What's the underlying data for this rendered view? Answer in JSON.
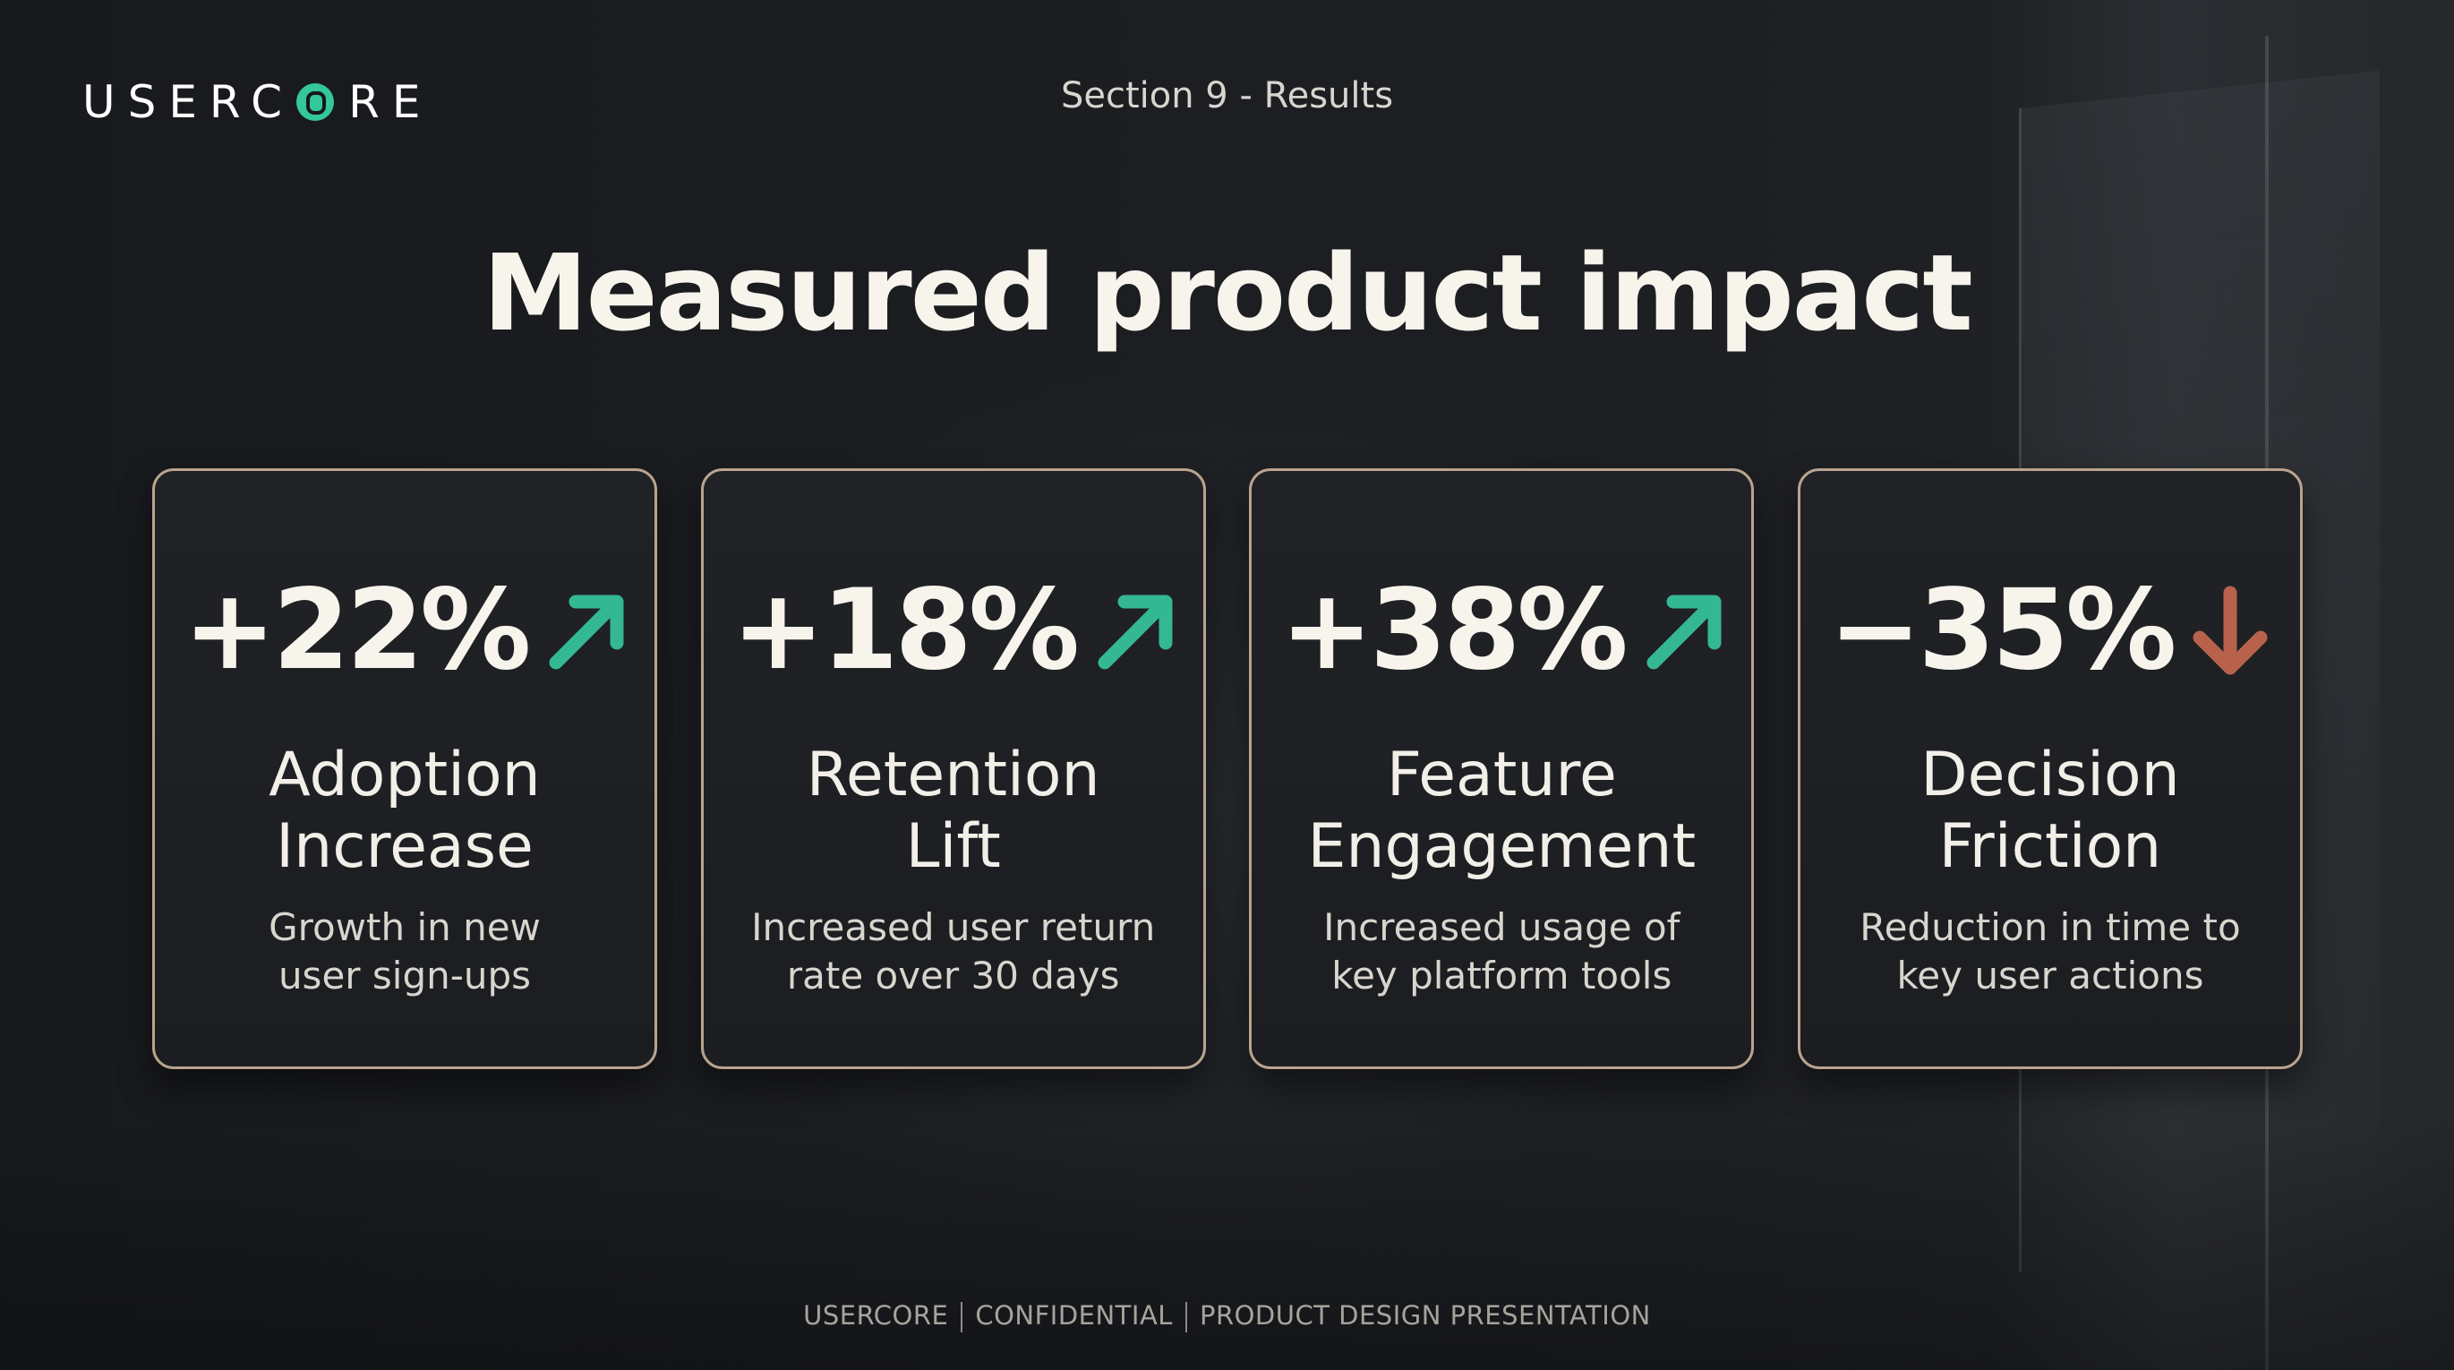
{
  "header": {
    "logo_text_left": "USERC",
    "logo_text_right": "RE",
    "section_label": "Section 9 - Results"
  },
  "title": "Measured product impact",
  "colors": {
    "accent_up": "#34b894",
    "accent_down": "#b8624c",
    "card_border": "#b8a48e"
  },
  "cards": [
    {
      "metric": "+22%",
      "trend": "up",
      "trend_icon": "arrow-up-right-icon",
      "title_line1": "Adoption",
      "title_line2": "Increase",
      "desc_line1": "Growth in new",
      "desc_line2": "user sign-ups"
    },
    {
      "metric": "+18%",
      "trend": "up",
      "trend_icon": "arrow-up-right-icon",
      "title_line1": "Retention",
      "title_line2": "Lift",
      "desc_line1": "Increased user return",
      "desc_line2": "rate over 30 days"
    },
    {
      "metric": "+38%",
      "trend": "up",
      "trend_icon": "arrow-up-right-icon",
      "title_line1": "Feature",
      "title_line2": "Engagement",
      "desc_line1": "Increased usage of",
      "desc_line2": "key platform tools"
    },
    {
      "metric": "−35%",
      "trend": "down",
      "trend_icon": "arrow-down-icon",
      "title_line1": "Decision",
      "title_line2": "Friction",
      "desc_line1": "Reduction in time to",
      "desc_line2": "key user actions"
    }
  ],
  "footer": {
    "part1": "USERCORE",
    "part2": "CONFIDENTIAL",
    "part3": "PRODUCT DESIGN PRESENTATION"
  }
}
